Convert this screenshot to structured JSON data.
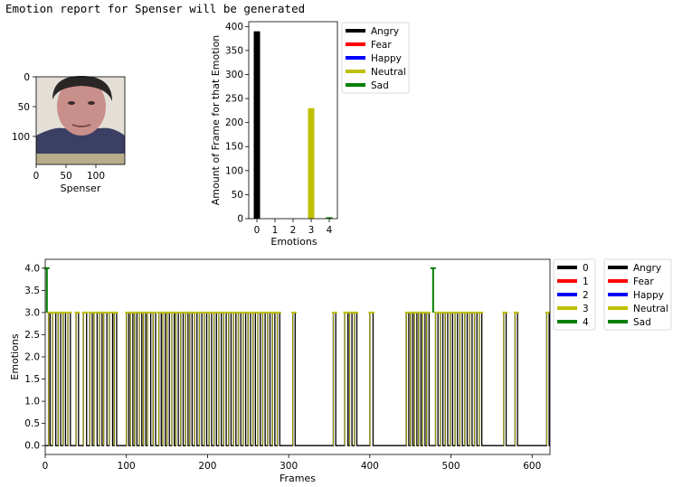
{
  "report": {
    "title": "Emotion report for Spenser will be generated"
  },
  "face_image": {
    "xlabel": "Spenser",
    "x_ticks": [
      "0",
      "50",
      "100"
    ],
    "y_ticks": [
      "0",
      "50",
      "100"
    ],
    "colors": {
      "hair": "#2b2626",
      "skin": "#c98f8a",
      "shirt": "#3a3f63",
      "background": "#e3dfd6",
      "band": "#b8ad8a"
    }
  },
  "chart_data": [
    {
      "type": "bar",
      "categories": [
        "0",
        "1",
        "2",
        "3",
        "4"
      ],
      "values": [
        390,
        0,
        0,
        230,
        3
      ],
      "colors": [
        "#000000",
        "#ff0000",
        "#0000ff",
        "#bfbf00",
        "#008000"
      ],
      "xlabel": "Emotions",
      "ylabel": "Amount of Frame for that Emotion",
      "ylim": [
        0,
        410
      ],
      "yticks": [
        0,
        50,
        100,
        150,
        200,
        250,
        300,
        350,
        400
      ],
      "legend": {
        "placement": "outside-right",
        "entries": [
          {
            "label": "Angry",
            "color": "#000000"
          },
          {
            "label": "Fear",
            "color": "#ff0000"
          },
          {
            "label": "Happy",
            "color": "#0000ff"
          },
          {
            "label": "Neutral",
            "color": "#bfbf00"
          },
          {
            "label": "Sad",
            "color": "#008000"
          }
        ]
      }
    },
    {
      "type": "line",
      "xlabel": "Frames",
      "ylabel": "Emotions",
      "xlim": [
        0,
        622
      ],
      "ylim": [
        -0.2,
        4.2
      ],
      "xticks": [
        0,
        100,
        200,
        300,
        400,
        500,
        600
      ],
      "yticks": [
        0.0,
        0.5,
        1.0,
        1.5,
        2.0,
        2.5,
        3.0,
        3.5,
        4.0
      ],
      "spikes_to_4": [
        2,
        478
      ],
      "neutral_segments": [
        [
          4,
          6
        ],
        [
          9,
          13
        ],
        [
          16,
          19
        ],
        [
          22,
          25
        ],
        [
          28,
          31
        ],
        [
          38,
          41
        ],
        [
          47,
          51
        ],
        [
          55,
          58
        ],
        [
          60,
          64
        ],
        [
          67,
          70
        ],
        [
          72,
          76
        ],
        [
          79,
          83
        ],
        [
          85,
          88
        ],
        [
          100,
          103
        ],
        [
          105,
          108
        ],
        [
          110,
          113
        ],
        [
          116,
          119
        ],
        [
          121,
          124
        ],
        [
          126,
          130
        ],
        [
          133,
          136
        ],
        [
          140,
          143
        ],
        [
          145,
          148
        ],
        [
          150,
          153
        ],
        [
          156,
          159
        ],
        [
          161,
          164
        ],
        [
          167,
          170
        ],
        [
          173,
          176
        ],
        [
          178,
          181
        ],
        [
          184,
          187
        ],
        [
          190,
          193
        ],
        [
          196,
          199
        ],
        [
          202,
          205
        ],
        [
          208,
          211
        ],
        [
          214,
          217
        ],
        [
          220,
          223
        ],
        [
          226,
          229
        ],
        [
          232,
          235
        ],
        [
          238,
          241
        ],
        [
          244,
          247
        ],
        [
          250,
          253
        ],
        [
          256,
          259
        ],
        [
          262,
          265
        ],
        [
          268,
          271
        ],
        [
          274,
          277
        ],
        [
          280,
          283
        ],
        [
          286,
          289
        ],
        [
          305,
          308
        ],
        [
          355,
          358
        ],
        [
          369,
          373
        ],
        [
          375,
          378
        ],
        [
          381,
          384
        ],
        [
          400,
          404
        ],
        [
          445,
          448
        ],
        [
          450,
          453
        ],
        [
          455,
          458
        ],
        [
          460,
          463
        ],
        [
          465,
          468
        ],
        [
          470,
          473
        ],
        [
          481,
          484
        ],
        [
          487,
          490
        ],
        [
          493,
          496
        ],
        [
          499,
          502
        ],
        [
          505,
          508
        ],
        [
          511,
          514
        ],
        [
          517,
          520
        ],
        [
          523,
          526
        ],
        [
          529,
          532
        ],
        [
          535,
          538
        ],
        [
          565,
          568
        ],
        [
          579,
          582
        ],
        [
          618,
          621
        ]
      ],
      "legend_numeric": {
        "entries": [
          {
            "label": "0",
            "color": "#000000"
          },
          {
            "label": "1",
            "color": "#ff0000"
          },
          {
            "label": "2",
            "color": "#0000ff"
          },
          {
            "label": "3",
            "color": "#bfbf00"
          },
          {
            "label": "4",
            "color": "#008000"
          }
        ]
      },
      "legend_named": {
        "entries": [
          {
            "label": "Angry",
            "color": "#000000"
          },
          {
            "label": "Fear",
            "color": "#ff0000"
          },
          {
            "label": "Happy",
            "color": "#0000ff"
          },
          {
            "label": "Neutral",
            "color": "#bfbf00"
          },
          {
            "label": "Sad",
            "color": "#008000"
          }
        ]
      }
    }
  ]
}
